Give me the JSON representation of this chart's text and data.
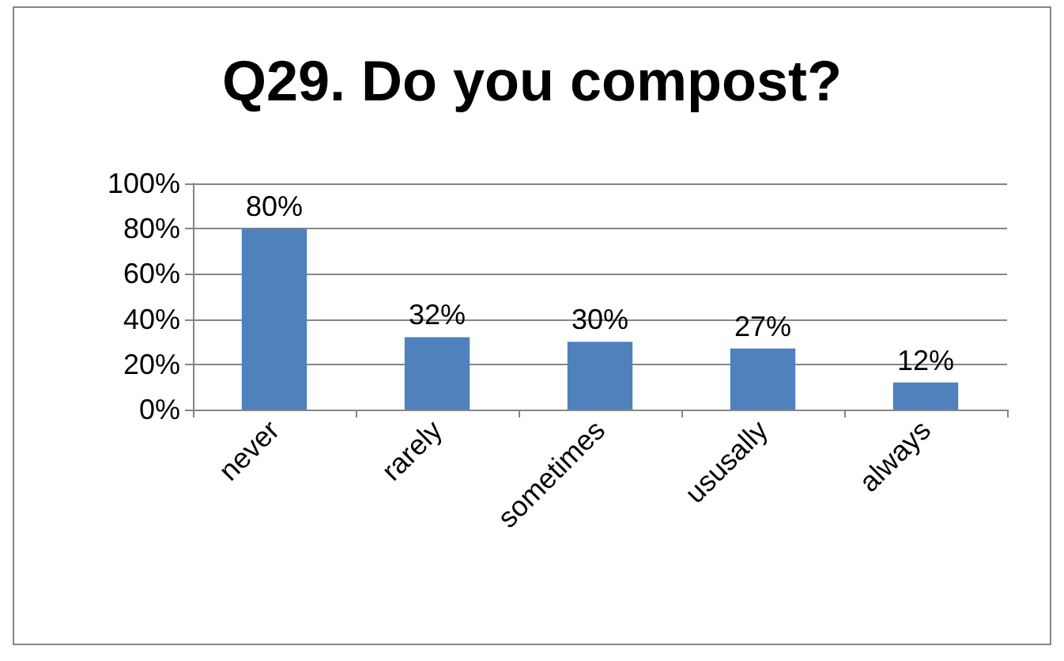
{
  "chart_data": {
    "type": "bar",
    "title": "Q29. Do you compost?",
    "categories": [
      "never",
      "rarely",
      "sometimes",
      "ususally",
      "always"
    ],
    "values": [
      80,
      32,
      30,
      27,
      12
    ],
    "value_labels": [
      "80%",
      "32%",
      "30%",
      "27%",
      "12%"
    ],
    "color": "#4f81bd",
    "ylim": [
      0,
      100
    ],
    "yticks": [
      {
        "value": 0,
        "label": "0%"
      },
      {
        "value": 20,
        "label": "20%"
      },
      {
        "value": 40,
        "label": "40%"
      },
      {
        "value": 60,
        "label": "60%"
      },
      {
        "value": 80,
        "label": "80%"
      },
      {
        "value": 100,
        "label": "100%"
      }
    ],
    "grid": "y"
  }
}
